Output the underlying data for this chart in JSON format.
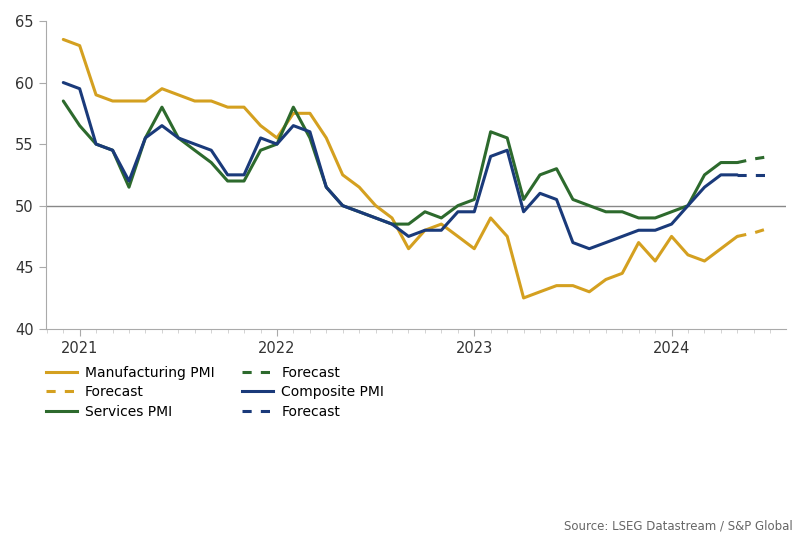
{
  "background_color": "#ffffff",
  "source_text": "Source: LSEG Datastream / S&P Global",
  "manufacturing_color": "#D4A020",
  "services_color": "#2D6A2D",
  "composite_color": "#1A3A7A",
  "ref_line_color": "#888888",
  "manufacturing_solid": {
    "x": [
      2020.917,
      2021.0,
      2021.083,
      2021.167,
      2021.25,
      2021.333,
      2021.417,
      2021.5,
      2021.583,
      2021.667,
      2021.75,
      2021.833,
      2021.917,
      2022.0,
      2022.083,
      2022.167,
      2022.25,
      2022.333,
      2022.417,
      2022.5,
      2022.583,
      2022.667,
      2022.75,
      2022.833,
      2022.917,
      2023.0,
      2023.083,
      2023.167,
      2023.25,
      2023.333,
      2023.417,
      2023.5,
      2023.583,
      2023.667,
      2023.75,
      2023.833,
      2023.917,
      2024.0,
      2024.083,
      2024.167,
      2024.25,
      2024.333
    ],
    "y": [
      63.5,
      63.0,
      59.0,
      58.5,
      58.5,
      58.5,
      59.5,
      59.0,
      58.5,
      58.5,
      58.0,
      58.0,
      56.5,
      55.5,
      57.5,
      57.5,
      55.5,
      52.5,
      51.5,
      50.0,
      49.0,
      46.5,
      48.0,
      48.5,
      47.5,
      46.5,
      49.0,
      47.5,
      42.5,
      43.0,
      43.5,
      43.5,
      43.0,
      44.0,
      44.5,
      47.0,
      45.5,
      47.5,
      46.0,
      45.5,
      46.5,
      47.5
    ]
  },
  "manufacturing_dashed": {
    "x": [
      2024.333,
      2024.42,
      2024.5
    ],
    "y": [
      47.5,
      47.8,
      48.2
    ]
  },
  "services_solid": {
    "x": [
      2020.917,
      2021.0,
      2021.083,
      2021.167,
      2021.25,
      2021.333,
      2021.417,
      2021.5,
      2021.583,
      2021.667,
      2021.75,
      2021.833,
      2021.917,
      2022.0,
      2022.083,
      2022.167,
      2022.25,
      2022.333,
      2022.417,
      2022.5,
      2022.583,
      2022.667,
      2022.75,
      2022.833,
      2022.917,
      2023.0,
      2023.083,
      2023.167,
      2023.25,
      2023.333,
      2023.417,
      2023.5,
      2023.583,
      2023.667,
      2023.75,
      2023.833,
      2023.917,
      2024.0,
      2024.083,
      2024.167,
      2024.25,
      2024.333
    ],
    "y": [
      58.5,
      56.5,
      55.0,
      54.5,
      51.5,
      55.5,
      58.0,
      55.5,
      54.5,
      53.5,
      52.0,
      52.0,
      54.5,
      55.0,
      58.0,
      55.5,
      51.5,
      50.0,
      49.5,
      49.0,
      48.5,
      48.5,
      49.5,
      49.0,
      50.0,
      50.5,
      56.0,
      55.5,
      50.5,
      52.5,
      53.0,
      50.5,
      50.0,
      49.5,
      49.5,
      49.0,
      49.0,
      49.5,
      50.0,
      52.5,
      53.5,
      53.5
    ]
  },
  "services_dashed": {
    "x": [
      2024.333,
      2024.42,
      2024.5
    ],
    "y": [
      53.5,
      53.8,
      54.0
    ]
  },
  "composite_solid": {
    "x": [
      2020.917,
      2021.0,
      2021.083,
      2021.167,
      2021.25,
      2021.333,
      2021.417,
      2021.5,
      2021.583,
      2021.667,
      2021.75,
      2021.833,
      2021.917,
      2022.0,
      2022.083,
      2022.167,
      2022.25,
      2022.333,
      2022.417,
      2022.5,
      2022.583,
      2022.667,
      2022.75,
      2022.833,
      2022.917,
      2023.0,
      2023.083,
      2023.167,
      2023.25,
      2023.333,
      2023.417,
      2023.5,
      2023.583,
      2023.667,
      2023.75,
      2023.833,
      2023.917,
      2024.0,
      2024.083,
      2024.167,
      2024.25,
      2024.333
    ],
    "y": [
      60.0,
      59.5,
      55.0,
      54.5,
      52.0,
      55.5,
      56.5,
      55.5,
      55.0,
      54.5,
      52.5,
      52.5,
      55.5,
      55.0,
      56.5,
      56.0,
      51.5,
      50.0,
      49.5,
      49.0,
      48.5,
      47.5,
      48.0,
      48.0,
      49.5,
      49.5,
      54.0,
      54.5,
      49.5,
      51.0,
      50.5,
      47.0,
      46.5,
      47.0,
      47.5,
      48.0,
      48.0,
      48.5,
      50.0,
      51.5,
      52.5,
      52.5
    ]
  },
  "composite_dashed": {
    "x": [
      2024.333,
      2024.42,
      2024.5
    ],
    "y": [
      52.5,
      52.5,
      52.5
    ]
  },
  "ylim": [
    40,
    65
  ],
  "xlim": [
    2020.83,
    2024.58
  ],
  "reference_line": 50,
  "xtick_positions": [
    2021.0,
    2022.0,
    2023.0,
    2024.0
  ],
  "xtick_labels": [
    "2021",
    "2022",
    "2023",
    "2024"
  ],
  "ytick_positions": [
    40,
    45,
    50,
    55,
    60,
    65
  ],
  "ytick_labels": [
    "40",
    "45",
    "50",
    "55",
    "60",
    "65"
  ],
  "legend_col1": [
    "Manufacturing PMI",
    "Services PMI",
    "Composite PMI"
  ],
  "legend_col2": [
    "Forecast",
    "Forecast",
    "Forecast"
  ]
}
